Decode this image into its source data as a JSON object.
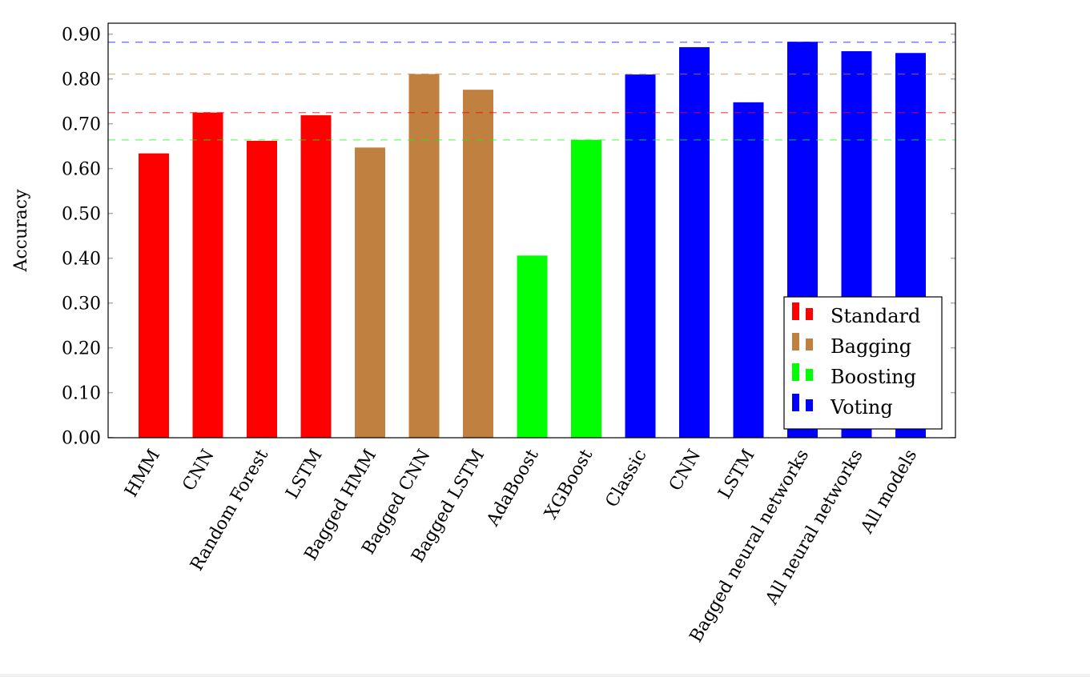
{
  "chart_data": {
    "type": "bar",
    "title": "",
    "xlabel": "",
    "ylabel": "Accuracy",
    "ylim": [
      0,
      0.925
    ],
    "yticks": [
      "0.00",
      "0.10",
      "0.20",
      "0.30",
      "0.40",
      "0.50",
      "0.60",
      "0.70",
      "0.80",
      "0.90"
    ],
    "grid": false,
    "legend_position": "bottom-right",
    "categories": [
      "HMM",
      "CNN",
      "Random Forest",
      "LSTM",
      "Bagged HMM",
      "Bagged CNN",
      "Bagged LSTM",
      "AdaBoost",
      "XGBoost",
      "Classic",
      "CNN",
      "LSTM",
      "Bagged neural networks",
      "All neural networks",
      "All models"
    ],
    "values": [
      0.634,
      0.725,
      0.662,
      0.719,
      0.647,
      0.811,
      0.776,
      0.406,
      0.664,
      0.81,
      0.871,
      0.748,
      0.883,
      0.862,
      0.858
    ],
    "groups": [
      "Standard",
      "Standard",
      "Standard",
      "Standard",
      "Bagging",
      "Bagging",
      "Bagging",
      "Boosting",
      "Boosting",
      "Voting",
      "Voting",
      "Voting",
      "Voting",
      "Voting",
      "Voting"
    ],
    "series": [
      {
        "name": "Standard",
        "color": "#ff0000",
        "reference_line": 0.725
      },
      {
        "name": "Bagging",
        "color": "#bf8040",
        "reference_line": 0.811
      },
      {
        "name": "Boosting",
        "color": "#00ff00",
        "reference_line": 0.664
      },
      {
        "name": "Voting",
        "color": "#0000ff",
        "reference_line": 0.882
      }
    ]
  }
}
